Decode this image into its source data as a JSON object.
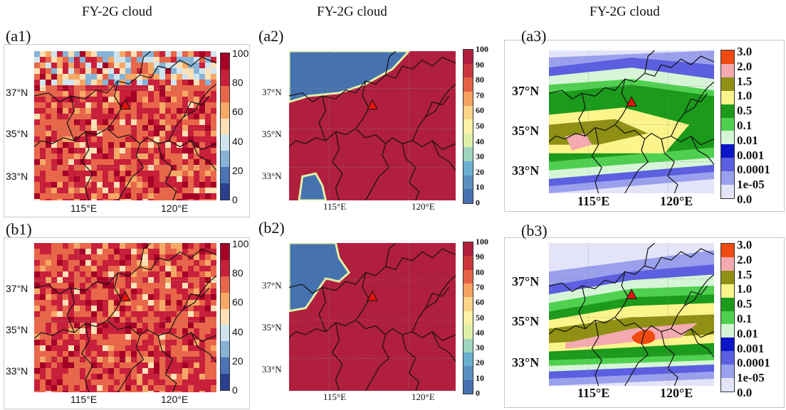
{
  "columns": [
    {
      "title": "FY-2G cloud"
    },
    {
      "title": "FY-2G cloud"
    },
    {
      "title": "FY-2G cloud"
    }
  ],
  "panels": {
    "a1": {
      "label": "(a1)",
      "lat": [
        "37°N",
        "35°N",
        "33°N"
      ],
      "lon": [
        "115°E",
        "120°E"
      ],
      "cbar_ticks": [
        "100",
        "80",
        "60",
        "40",
        "20",
        "0"
      ]
    },
    "a2": {
      "label": "(a2)",
      "lat": [
        "37°N",
        "35°N",
        "33°N"
      ],
      "lon": [
        "115°E",
        "120°E"
      ],
      "cbar_ticks": [
        "100",
        "90",
        "80",
        "70",
        "60",
        "50",
        "40",
        "30",
        "20",
        "10",
        "0"
      ]
    },
    "a3": {
      "label": "(a3)",
      "lat": [
        "37°N",
        "35°N",
        "33°N"
      ],
      "lon": [
        "115°E",
        "120°E"
      ],
      "cbar_ticks": [
        "3.0",
        "2.0",
        "1.5",
        "1.0",
        "0.5",
        "0.1",
        "0.01",
        "0.001",
        "0.0001",
        "1e-05",
        "0.0"
      ]
    },
    "b1": {
      "label": "(b1)",
      "lat": [
        "37°N",
        "35°N",
        "33°N"
      ],
      "lon": [
        "115°E",
        "120°E"
      ],
      "cbar_ticks": [
        "100",
        "80",
        "60",
        "40",
        "20",
        "0"
      ]
    },
    "b2": {
      "label": "(b2)",
      "lat": [
        "37°N",
        "35°N",
        "33°N"
      ],
      "lon": [
        "115°E",
        "120°E"
      ],
      "cbar_ticks": [
        "100",
        "90",
        "80",
        "70",
        "60",
        "50",
        "40",
        "30",
        "20",
        "10",
        "0"
      ]
    },
    "b3": {
      "label": "(b3)",
      "lat": [
        "37°N",
        "35°N",
        "33°N"
      ],
      "lon": [
        "115°E",
        "120°E"
      ],
      "cbar_ticks": [
        "3.0",
        "2.0",
        "1.5",
        "1.0",
        "0.5",
        "0.1",
        "0.01",
        "0.001",
        "0.0001",
        "1e-05",
        "0.0"
      ]
    }
  },
  "colors": {
    "cf_scale": [
      "#2b3f8f",
      "#4a74b4",
      "#86b3d6",
      "#cfe4ee",
      "#fde0b5",
      "#f6a866",
      "#e8674a",
      "#c8203a",
      "#a50026"
    ],
    "level_scale": [
      "#4672b0",
      "#5a8fc0",
      "#6aaed0",
      "#9fd4bf",
      "#dff0a8",
      "#fbf0a8",
      "#fcd48a",
      "#f6a05e",
      "#e56246",
      "#c9373c",
      "#b11f3e"
    ],
    "precip_scale": [
      "#e4e4f8",
      "#9aa0ec",
      "#5b5fe0",
      "#0a16c8",
      "#d6f5d6",
      "#4fd14f",
      "#1b9a1b",
      "#fbf48a",
      "#8f9014",
      "#f5a9b0",
      "#f04a10"
    ],
    "marker": "#e8140c"
  }
}
